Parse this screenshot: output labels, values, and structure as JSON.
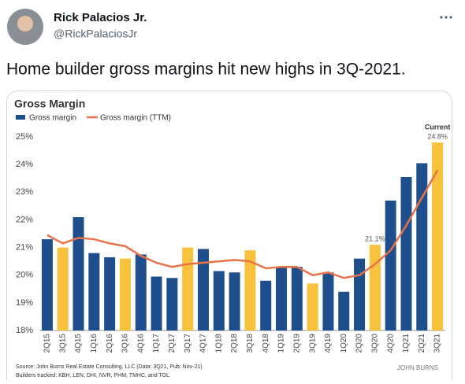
{
  "tweet": {
    "name": "Rick Palacios Jr.",
    "handle": "@RickPalaciosJr",
    "text": "Home builder gross margins hit new highs in 3Q-2021."
  },
  "chart_data": {
    "type": "bar",
    "title": "Gross Margin",
    "categories": [
      "2Q15",
      "3Q15",
      "4Q15",
      "1Q16",
      "2Q16",
      "3Q16",
      "4Q16",
      "1Q17",
      "2Q17",
      "3Q17",
      "4Q17",
      "1Q18",
      "2Q18",
      "3Q18",
      "4Q18",
      "1Q19",
      "2Q19",
      "3Q19",
      "4Q19",
      "1Q20",
      "2Q20",
      "3Q20",
      "4Q20",
      "1Q21",
      "2Q21",
      "3Q21"
    ],
    "series": [
      {
        "name": "Gross margin",
        "type": "bar",
        "color": "#1f4e8c",
        "colors": [
          "#1f4e8c",
          "#f8c23c",
          "#1f4e8c",
          "#1f4e8c",
          "#1f4e8c",
          "#f8c23c",
          "#1f4e8c",
          "#1f4e8c",
          "#1f4e8c",
          "#f8c23c",
          "#1f4e8c",
          "#1f4e8c",
          "#1f4e8c",
          "#f8c23c",
          "#1f4e8c",
          "#1f4e8c",
          "#1f4e8c",
          "#f8c23c",
          "#1f4e8c",
          "#1f4e8c",
          "#1f4e8c",
          "#f8c23c",
          "#1f4e8c",
          "#1f4e8c",
          "#1f4e8c",
          "#f8c23c"
        ],
        "values": [
          21.3,
          21.0,
          22.1,
          20.8,
          20.65,
          20.6,
          20.75,
          19.95,
          19.9,
          21.0,
          20.95,
          20.15,
          20.1,
          20.9,
          19.8,
          20.3,
          20.3,
          19.7,
          20.1,
          19.4,
          20.6,
          21.1,
          22.7,
          23.55,
          24.05,
          24.8
        ],
        "value_labels": [
          null,
          null,
          null,
          null,
          null,
          null,
          null,
          null,
          null,
          null,
          null,
          null,
          null,
          null,
          null,
          null,
          null,
          null,
          null,
          null,
          null,
          "21.1%",
          null,
          null,
          null,
          "24.8%"
        ]
      },
      {
        "name": "Gross margin (TTM)",
        "type": "line",
        "color": "#e8734a",
        "values": [
          21.45,
          21.15,
          21.35,
          21.3,
          21.15,
          21.05,
          20.7,
          20.45,
          20.3,
          20.4,
          20.45,
          20.5,
          20.55,
          20.5,
          20.25,
          20.3,
          20.3,
          20.0,
          20.1,
          19.9,
          20.0,
          20.4,
          20.9,
          21.8,
          22.8,
          23.8
        ]
      }
    ],
    "annotation": "Current",
    "ylim": [
      18,
      25.4
    ],
    "yticks": [
      {
        "value": 18,
        "label": "18%"
      },
      {
        "value": 19,
        "label": "19%"
      },
      {
        "value": 20,
        "label": "20%"
      },
      {
        "value": 21,
        "label": "21%"
      },
      {
        "value": 22,
        "label": "22%"
      },
      {
        "value": 23,
        "label": "23%"
      },
      {
        "value": 24,
        "label": "24%"
      },
      {
        "value": 25,
        "label": "25%"
      }
    ],
    "source": "Source: John Burns Real Estate Consulting, LLC (Data: 3Q21, Pub: Nov-21)",
    "note": "Builders tracked: KBH, LEN, DHI, NVR, PHM, TMHC, and TOL.",
    "logo": "JOHN BURNS"
  }
}
